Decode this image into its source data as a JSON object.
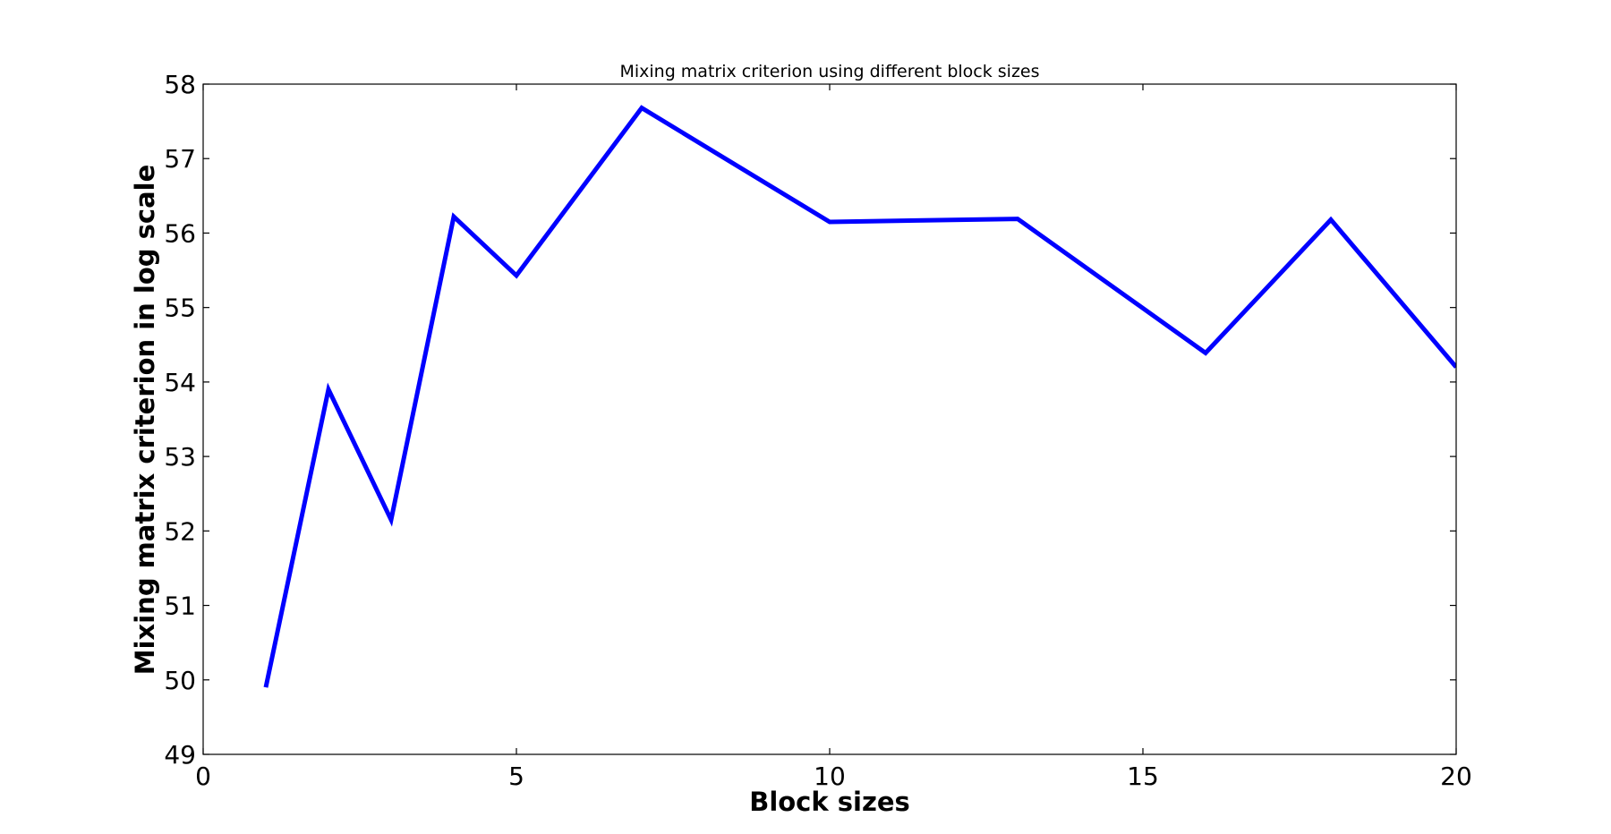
{
  "chart_data": {
    "type": "line",
    "title": "Mixing matrix criterion using different block sizes",
    "xlabel": "Block sizes",
    "ylabel": "Mixing matrix criterion in log scale",
    "xlim": [
      0,
      20
    ],
    "ylim": [
      49,
      58
    ],
    "xticks": [
      0,
      5,
      10,
      15,
      20
    ],
    "yticks": [
      49,
      50,
      51,
      52,
      53,
      54,
      55,
      56,
      57,
      58
    ],
    "grid": false,
    "legend": "none",
    "series": [
      {
        "color": "#0000ff",
        "x": [
          1,
          2,
          3,
          4,
          5,
          7,
          10,
          13,
          16,
          18,
          20
        ],
        "y": [
          49.9,
          53.9,
          52.15,
          56.22,
          55.43,
          57.68,
          56.15,
          56.19,
          54.39,
          56.18,
          54.2
        ]
      }
    ]
  }
}
